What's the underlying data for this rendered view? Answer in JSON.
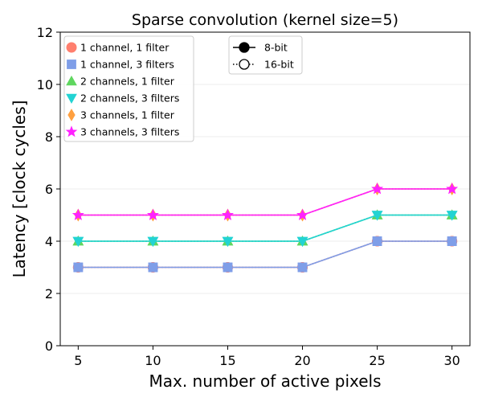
{
  "chart_data": {
    "type": "line",
    "title": "Sparse convolution (kernel size=5)",
    "xlabel": "Max. number of active pixels",
    "ylabel": "Latency [clock cycles]",
    "x": [
      5,
      10,
      15,
      20,
      25,
      30
    ],
    "xticks": [
      "5",
      "10",
      "15",
      "20",
      "25",
      "30"
    ],
    "xlim": [
      3.8,
      31.2
    ],
    "ylim": [
      0,
      12
    ],
    "yticks": [
      "0",
      "2",
      "4",
      "6",
      "8",
      "10",
      "12"
    ],
    "grid": "horizontal",
    "series": [
      {
        "name": "1 channel, 1 filter",
        "color": "#ff7f6e",
        "marker": "circle",
        "values_8bit": [
          3,
          3,
          3,
          3,
          4,
          4
        ],
        "values_16bit": [
          3,
          3,
          3,
          3,
          4,
          4
        ]
      },
      {
        "name": "1 channel, 3 filters",
        "color": "#7f9ee8",
        "marker": "square",
        "values_8bit": [
          3,
          3,
          3,
          3,
          4,
          4
        ],
        "values_16bit": [
          3,
          3,
          3,
          3,
          4,
          4
        ]
      },
      {
        "name": "2 channels, 1 filter",
        "color": "#5fd65f",
        "marker": "triangle-up",
        "values_8bit": [
          4,
          4,
          4,
          4,
          5,
          5
        ],
        "values_16bit": [
          4,
          4,
          4,
          4,
          5,
          5
        ]
      },
      {
        "name": "2 channels, 3 filters",
        "color": "#22d3d3",
        "marker": "triangle-down",
        "values_8bit": [
          4,
          4,
          4,
          4,
          5,
          5
        ],
        "values_16bit": [
          4,
          4,
          4,
          4,
          5,
          5
        ]
      },
      {
        "name": "3 channels, 1 filter",
        "color": "#ffa040",
        "marker": "diamond",
        "values_8bit": [
          5,
          5,
          5,
          5,
          6,
          6
        ],
        "values_16bit": [
          5,
          5,
          5,
          5,
          6,
          6
        ]
      },
      {
        "name": "3 channels, 3 filters",
        "color": "#ff22ff",
        "marker": "star",
        "values_8bit": [
          5,
          5,
          5,
          5,
          6,
          6
        ],
        "values_16bit": [
          5,
          5,
          5,
          5,
          6,
          6
        ]
      }
    ],
    "style_legend": [
      {
        "name": "8-bit",
        "line": "solid",
        "marker": "filled-circle"
      },
      {
        "name": "16-bit",
        "line": "dotted",
        "marker": "open-circle"
      }
    ],
    "legend_position": "top-left"
  }
}
